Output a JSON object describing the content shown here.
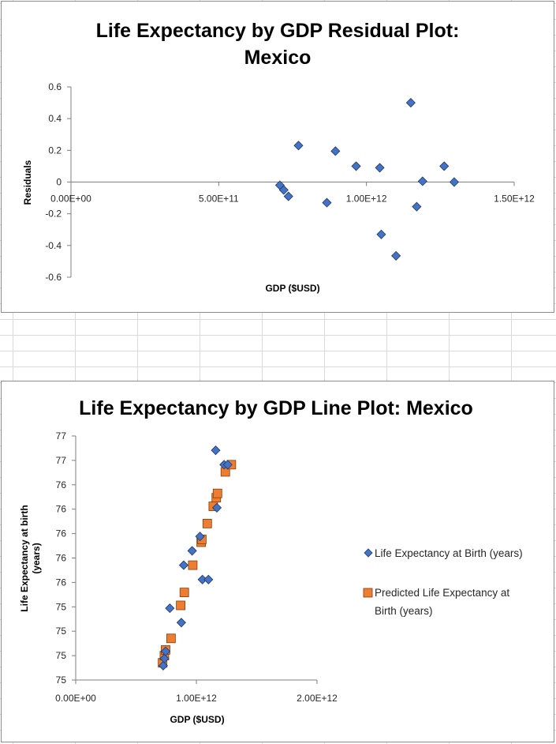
{
  "chart_data": [
    {
      "type": "scatter",
      "title_lines": [
        "Life Expectancy by GDP Residual Plot:",
        "Mexico"
      ],
      "xlabel": "GDP ($USD)",
      "ylabel": "Residuals",
      "xlim": [
        0,
        1500000000000
      ],
      "ylim": [
        -0.6,
        0.6
      ],
      "x_ticks": [
        {
          "value": 0,
          "label": "0.00E+00"
        },
        {
          "value": 500000000000,
          "label": "5.00E+11"
        },
        {
          "value": 1000000000000,
          "label": "1.00E+12"
        },
        {
          "value": 1500000000000,
          "label": "1.50E+12"
        }
      ],
      "y_ticks": [
        {
          "value": 0.6,
          "label": "0.6"
        },
        {
          "value": 0.4,
          "label": "0.4"
        },
        {
          "value": 0.2,
          "label": "0.2"
        },
        {
          "value": 0,
          "label": "0"
        },
        {
          "value": -0.2,
          "label": "-0.2"
        },
        {
          "value": -0.4,
          "label": "-0.4"
        },
        {
          "value": -0.6,
          "label": "-0.6"
        }
      ],
      "grid": false,
      "marker_color": "#4472c4",
      "series": [
        {
          "points": [
            {
              "x": 707000000000,
              "y": -0.02
            },
            {
              "x": 720000000000,
              "y": -0.05
            },
            {
              "x": 736000000000,
              "y": -0.09
            },
            {
              "x": 770000000000,
              "y": 0.23
            },
            {
              "x": 866000000000,
              "y": -0.13
            },
            {
              "x": 895000000000,
              "y": 0.195
            },
            {
              "x": 965000000000,
              "y": 0.1
            },
            {
              "x": 1045000000000,
              "y": 0.09
            },
            {
              "x": 1050000000000,
              "y": -0.33
            },
            {
              "x": 1100000000000,
              "y": -0.465
            },
            {
              "x": 1150000000000,
              "y": 0.5
            },
            {
              "x": 1170000000000,
              "y": -0.155
            },
            {
              "x": 1190000000000,
              "y": 0.005
            },
            {
              "x": 1263000000000,
              "y": 0.1
            },
            {
              "x": 1297000000000,
              "y": 0.0
            }
          ]
        }
      ]
    },
    {
      "type": "scatter",
      "title": "Life Expectancy by GDP Line Plot: Mexico",
      "xlabel": "GDP ($USD)",
      "ylabel_lines": [
        "Life Expectancy at birth",
        "(years)"
      ],
      "xlim": [
        0,
        2000000000000
      ],
      "x_ticks": [
        {
          "value": 0,
          "label": "0.00E+00"
        },
        {
          "value": 1000000000000,
          "label": "1.00E+12"
        },
        {
          "value": 2000000000000,
          "label": "2.00E+12"
        }
      ],
      "y_tick_labels": [
        "77",
        "77",
        "76",
        "76",
        "76",
        "76",
        "76",
        "75",
        "75",
        "75",
        "75"
      ],
      "grid": false,
      "legend_position": "right",
      "series": [
        {
          "name": "Life Expectancy at Birth (years)",
          "marker": "diamond",
          "color": "#4472c4",
          "points": [
            {
              "x": 725000000000,
              "y": 75.0
            },
            {
              "x": 735000000000,
              "y": 75.05
            },
            {
              "x": 745000000000,
              "y": 75.1
            },
            {
              "x": 780000000000,
              "y": 75.4
            },
            {
              "x": 875000000000,
              "y": 75.3
            },
            {
              "x": 895000000000,
              "y": 75.7
            },
            {
              "x": 965000000000,
              "y": 75.8
            },
            {
              "x": 1030000000000,
              "y": 75.9
            },
            {
              "x": 1050000000000,
              "y": 75.6
            },
            {
              "x": 1100000000000,
              "y": 75.6
            },
            {
              "x": 1160000000000,
              "y": 76.5
            },
            {
              "x": 1170000000000,
              "y": 76.1
            },
            {
              "x": 1230000000000,
              "y": 76.4
            },
            {
              "x": 1260000000000,
              "y": 76.4
            }
          ]
        },
        {
          "name": "Predicted Life Expectancy at Birth (years)",
          "legend_lines": [
            "Predicted Life Expectancy at",
            "Birth (years)"
          ],
          "marker": "square",
          "color": "#ed7d31",
          "points": [
            {
              "x": 720000000000,
              "y": 75.02
            },
            {
              "x": 735000000000,
              "y": 75.07
            },
            {
              "x": 745000000000,
              "y": 75.11
            },
            {
              "x": 790000000000,
              "y": 75.19
            },
            {
              "x": 870000000000,
              "y": 75.42
            },
            {
              "x": 900000000000,
              "y": 75.51
            },
            {
              "x": 970000000000,
              "y": 75.7
            },
            {
              "x": 1040000000000,
              "y": 75.86
            },
            {
              "x": 1045000000000,
              "y": 75.88
            },
            {
              "x": 1090000000000,
              "y": 75.99
            },
            {
              "x": 1140000000000,
              "y": 76.11
            },
            {
              "x": 1165000000000,
              "y": 76.17
            },
            {
              "x": 1175000000000,
              "y": 76.2
            },
            {
              "x": 1240000000000,
              "y": 76.35
            },
            {
              "x": 1290000000000,
              "y": 76.4
            }
          ]
        }
      ]
    }
  ]
}
